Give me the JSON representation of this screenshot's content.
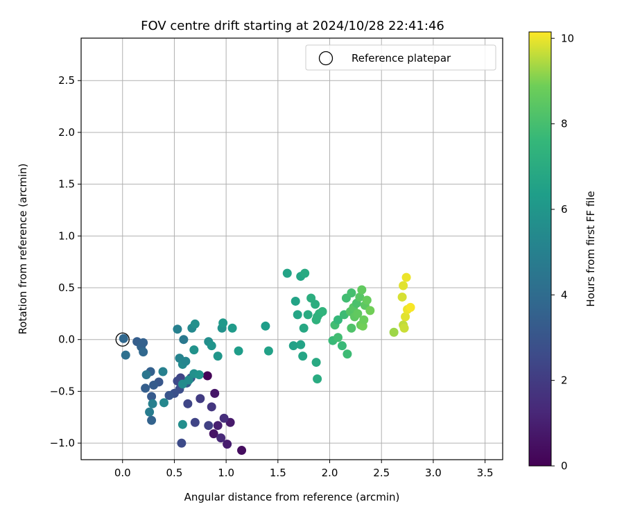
{
  "chart_data": {
    "type": "scatter",
    "title": "FOV centre drift starting at 2024/10/28 22:41:46",
    "xlabel": "Angular distance from reference (arcmin)",
    "ylabel": "Rotation from reference (arcmin)",
    "xlim": [
      -0.4,
      3.67
    ],
    "ylim": [
      -1.16,
      2.91
    ],
    "xticks": [
      0.0,
      0.5,
      1.0,
      1.5,
      2.0,
      2.5,
      3.0,
      3.5
    ],
    "xtick_labels": [
      "0.0",
      "0.5",
      "1.0",
      "1.5",
      "2.0",
      "2.5",
      "3.0",
      "3.5"
    ],
    "yticks": [
      -1.0,
      -0.5,
      0.0,
      0.5,
      1.0,
      1.5,
      2.0,
      2.5
    ],
    "ytick_labels": [
      "−1.0",
      "−0.5",
      "0.0",
      "0.5",
      "1.0",
      "1.5",
      "2.0",
      "2.5"
    ],
    "grid": true,
    "legend": {
      "placement": "top-right",
      "entries": [
        "Reference platepar"
      ]
    },
    "reference_point": {
      "x": 0.0,
      "y": 0.0,
      "marker": "open-circle"
    },
    "colorbar": {
      "label": "Hours from first FF file",
      "range": [
        0,
        10.15
      ],
      "ticks": [
        0,
        2,
        4,
        6,
        8,
        10
      ],
      "tick_labels": [
        "0",
        "2",
        "4",
        "6",
        "8",
        "10"
      ],
      "colormap": "viridis"
    },
    "series": [
      {
        "points": [
          {
            "x": 0.82,
            "y": -0.35,
            "c": 0.1
          },
          {
            "x": 1.15,
            "y": -1.07,
            "c": 0.4
          },
          {
            "x": 1.04,
            "y": -0.8,
            "c": 0.8
          },
          {
            "x": 1.01,
            "y": -1.01,
            "c": 0.9
          },
          {
            "x": 0.88,
            "y": -0.91,
            "c": 0.6
          },
          {
            "x": 0.89,
            "y": -0.52,
            "c": 0.7
          },
          {
            "x": 0.92,
            "y": -0.83,
            "c": 1.0
          },
          {
            "x": 0.95,
            "y": -0.95,
            "c": 1.3
          },
          {
            "x": 0.98,
            "y": -0.76,
            "c": 1.5
          },
          {
            "x": 0.86,
            "y": -0.65,
            "c": 1.8
          },
          {
            "x": 0.75,
            "y": -0.57,
            "c": 2.0
          },
          {
            "x": 0.83,
            "y": -0.83,
            "c": 2.2
          },
          {
            "x": 0.7,
            "y": -0.8,
            "c": 2.3
          },
          {
            "x": 0.63,
            "y": -0.62,
            "c": 2.4
          },
          {
            "x": 0.57,
            "y": -1.0,
            "c": 2.6
          },
          {
            "x": 0.56,
            "y": -0.37,
            "c": 2.3
          },
          {
            "x": 0.53,
            "y": -0.4,
            "c": 2.5
          },
          {
            "x": 0.55,
            "y": -0.48,
            "c": 2.7
          },
          {
            "x": 0.5,
            "y": -0.52,
            "c": 2.8
          },
          {
            "x": 0.45,
            "y": -0.54,
            "c": 3.0
          },
          {
            "x": 0.35,
            "y": -0.41,
            "c": 3.1
          },
          {
            "x": 0.66,
            "y": -0.37,
            "c": 2.9
          },
          {
            "x": 0.62,
            "y": -0.42,
            "c": 3.2
          },
          {
            "x": 0.28,
            "y": -0.55,
            "c": 3.2
          },
          {
            "x": 0.3,
            "y": -0.44,
            "c": 3.3
          },
          {
            "x": 0.22,
            "y": -0.47,
            "c": 3.4
          },
          {
            "x": 0.27,
            "y": -0.31,
            "c": 3.5
          },
          {
            "x": 0.28,
            "y": -0.78,
            "c": 3.6
          },
          {
            "x": 0.14,
            "y": -0.02,
            "c": 3.4
          },
          {
            "x": 0.18,
            "y": -0.07,
            "c": 3.6
          },
          {
            "x": 0.2,
            "y": -0.03,
            "c": 3.5
          },
          {
            "x": 0.2,
            "y": -0.12,
            "c": 3.8
          },
          {
            "x": 0.01,
            "y": 0.01,
            "c": 3.8
          },
          {
            "x": 0.03,
            "y": -0.15,
            "c": 4.2
          },
          {
            "x": 0.23,
            "y": -0.34,
            "c": 4.5
          },
          {
            "x": 0.26,
            "y": -0.7,
            "c": 4.8
          },
          {
            "x": 0.29,
            "y": -0.62,
            "c": 5.0
          },
          {
            "x": 0.39,
            "y": -0.31,
            "c": 5.0
          },
          {
            "x": 0.4,
            "y": -0.61,
            "c": 5.3
          },
          {
            "x": 0.59,
            "y": 0.0,
            "c": 4.6
          },
          {
            "x": 0.55,
            "y": -0.18,
            "c": 5.1
          },
          {
            "x": 0.58,
            "y": -0.24,
            "c": 5.4
          },
          {
            "x": 0.58,
            "y": -0.43,
            "c": 5.5
          },
          {
            "x": 0.58,
            "y": -0.82,
            "c": 5.6
          },
          {
            "x": 0.61,
            "y": -0.21,
            "c": 5.2
          },
          {
            "x": 0.64,
            "y": -0.39,
            "c": 5.5
          },
          {
            "x": 0.69,
            "y": -0.33,
            "c": 5.7
          },
          {
            "x": 0.74,
            "y": -0.34,
            "c": 5.9
          },
          {
            "x": 0.53,
            "y": 0.1,
            "c": 5.0
          },
          {
            "x": 0.67,
            "y": 0.11,
            "c": 5.4
          },
          {
            "x": 0.7,
            "y": 0.15,
            "c": 5.7
          },
          {
            "x": 0.69,
            "y": -0.1,
            "c": 5.8
          },
          {
            "x": 0.83,
            "y": -0.02,
            "c": 5.6
          },
          {
            "x": 0.86,
            "y": -0.06,
            "c": 5.9
          },
          {
            "x": 0.92,
            "y": -0.16,
            "c": 6.0
          },
          {
            "x": 0.96,
            "y": 0.11,
            "c": 5.8
          },
          {
            "x": 0.97,
            "y": 0.16,
            "c": 6.1
          },
          {
            "x": 1.06,
            "y": 0.11,
            "c": 6.2
          },
          {
            "x": 1.12,
            "y": -0.11,
            "c": 6.3
          },
          {
            "x": 1.38,
            "y": 0.13,
            "c": 6.3
          },
          {
            "x": 1.41,
            "y": -0.11,
            "c": 6.5
          },
          {
            "x": 1.59,
            "y": 0.64,
            "c": 6.6
          },
          {
            "x": 1.72,
            "y": 0.61,
            "c": 6.7
          },
          {
            "x": 1.76,
            "y": 0.64,
            "c": 6.9
          },
          {
            "x": 1.67,
            "y": 0.37,
            "c": 6.6
          },
          {
            "x": 1.69,
            "y": 0.24,
            "c": 6.7
          },
          {
            "x": 1.75,
            "y": 0.11,
            "c": 6.8
          },
          {
            "x": 1.65,
            "y": -0.06,
            "c": 6.5
          },
          {
            "x": 1.72,
            "y": -0.05,
            "c": 6.6
          },
          {
            "x": 1.74,
            "y": -0.16,
            "c": 6.7
          },
          {
            "x": 1.79,
            "y": 0.24,
            "c": 7.0
          },
          {
            "x": 1.82,
            "y": 0.4,
            "c": 7.1
          },
          {
            "x": 1.86,
            "y": 0.34,
            "c": 7.1
          },
          {
            "x": 1.88,
            "y": 0.22,
            "c": 7.2
          },
          {
            "x": 1.87,
            "y": 0.19,
            "c": 7.3
          },
          {
            "x": 1.9,
            "y": 0.25,
            "c": 7.3
          },
          {
            "x": 1.93,
            "y": 0.27,
            "c": 7.4
          },
          {
            "x": 1.87,
            "y": -0.22,
            "c": 6.9
          },
          {
            "x": 1.88,
            "y": -0.38,
            "c": 7.0
          },
          {
            "x": 2.05,
            "y": 0.14,
            "c": 7.9
          },
          {
            "x": 2.08,
            "y": 0.19,
            "c": 7.6
          },
          {
            "x": 2.03,
            "y": -0.01,
            "c": 7.7
          },
          {
            "x": 2.08,
            "y": 0.02,
            "c": 7.9
          },
          {
            "x": 2.12,
            "y": -0.06,
            "c": 7.7
          },
          {
            "x": 2.17,
            "y": -0.14,
            "c": 7.8
          },
          {
            "x": 2.14,
            "y": 0.24,
            "c": 7.8
          },
          {
            "x": 2.16,
            "y": 0.4,
            "c": 7.9
          },
          {
            "x": 2.21,
            "y": 0.45,
            "c": 8.0
          },
          {
            "x": 2.2,
            "y": 0.27,
            "c": 8.3
          },
          {
            "x": 2.23,
            "y": 0.31,
            "c": 8.4
          },
          {
            "x": 2.21,
            "y": 0.11,
            "c": 8.2
          },
          {
            "x": 2.24,
            "y": 0.22,
            "c": 8.5
          },
          {
            "x": 2.26,
            "y": 0.35,
            "c": 8.1
          },
          {
            "x": 2.27,
            "y": 0.25,
            "c": 8.6
          },
          {
            "x": 2.29,
            "y": 0.41,
            "c": 8.4
          },
          {
            "x": 2.31,
            "y": 0.48,
            "c": 8.6
          },
          {
            "x": 2.3,
            "y": 0.14,
            "c": 8.7
          },
          {
            "x": 2.32,
            "y": 0.13,
            "c": 8.9
          },
          {
            "x": 2.33,
            "y": 0.19,
            "c": 8.8
          },
          {
            "x": 2.34,
            "y": 0.33,
            "c": 8.5
          },
          {
            "x": 2.36,
            "y": 0.38,
            "c": 8.7
          },
          {
            "x": 2.39,
            "y": 0.28,
            "c": 8.9
          },
          {
            "x": 2.62,
            "y": 0.07,
            "c": 9.3
          },
          {
            "x": 2.7,
            "y": 0.41,
            "c": 9.8
          },
          {
            "x": 2.71,
            "y": 0.52,
            "c": 9.9
          },
          {
            "x": 2.74,
            "y": 0.6,
            "c": 10.0
          },
          {
            "x": 2.71,
            "y": 0.14,
            "c": 9.6
          },
          {
            "x": 2.72,
            "y": 0.11,
            "c": 9.7
          },
          {
            "x": 2.73,
            "y": 0.22,
            "c": 9.9
          },
          {
            "x": 2.75,
            "y": 0.29,
            "c": 10.0
          },
          {
            "x": 2.78,
            "y": 0.31,
            "c": 10.1
          }
        ]
      }
    ]
  }
}
